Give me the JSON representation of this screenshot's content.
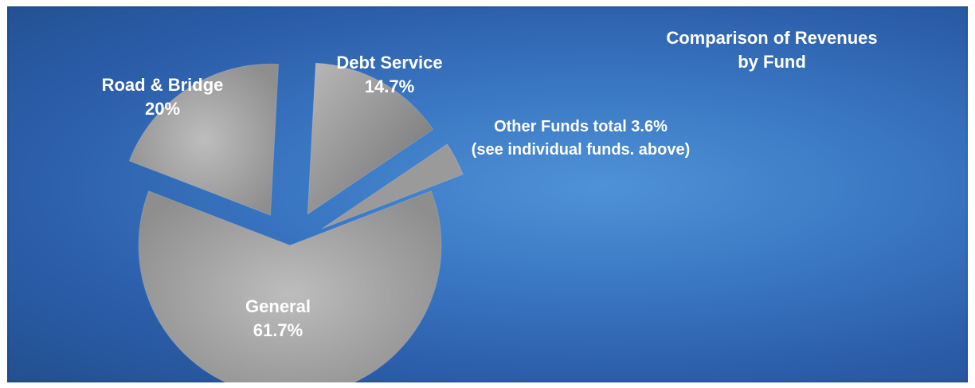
{
  "chart_data": {
    "type": "pie",
    "title": "Comparison of Revenues by Fund",
    "title_lines": [
      "Comparison of Revenues",
      "by Fund"
    ],
    "exploded": true,
    "slices": [
      {
        "name": "General",
        "value": 61.7,
        "label_lines": [
          "General",
          "61.7%"
        ],
        "color": "#a8a8a8"
      },
      {
        "name": "Road & Bridge",
        "value": 20,
        "label_lines": [
          "Road & Bridge",
          "20%"
        ],
        "color": "#a8a8a8"
      },
      {
        "name": "Debt Service",
        "value": 14.7,
        "label_lines": [
          "Debt Service",
          "14.7%"
        ],
        "color": "#a0a0a0"
      },
      {
        "name": "Other Funds",
        "value": 3.6,
        "label_lines": [
          "Other Funds total 3.6%",
          "(see individual funds. above)"
        ],
        "color": "#9a9a9a"
      }
    ]
  },
  "colors": {
    "background": "#3b78c4",
    "label_text": "#ffffff"
  }
}
